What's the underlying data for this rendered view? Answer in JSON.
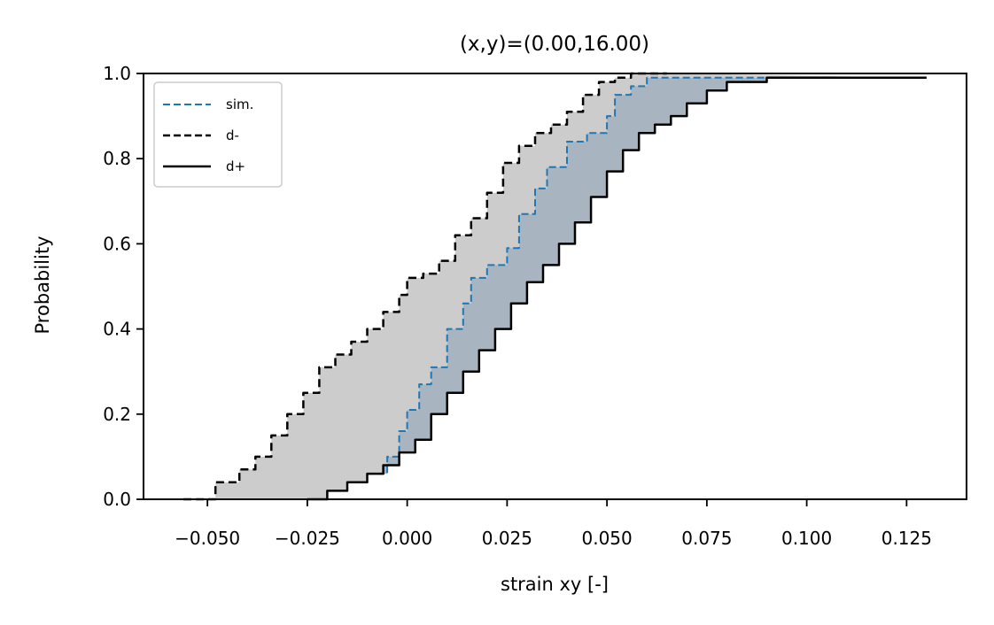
{
  "chart_data": {
    "type": "line",
    "title": "(x,y)=(0.00,16.00)",
    "xlabel": "strain xy [-]",
    "ylabel": "Probability",
    "xlim": [
      -0.066,
      0.14
    ],
    "ylim": [
      0.0,
      1.0
    ],
    "xticks": [
      -0.05,
      -0.025,
      0.0,
      0.025,
      0.05,
      0.075,
      0.1,
      0.125
    ],
    "xtick_labels": [
      "−0.050",
      "−0.025",
      "0.000",
      "0.025",
      "0.050",
      "0.075",
      "0.100",
      "0.125"
    ],
    "yticks": [
      0.0,
      0.2,
      0.4,
      0.6,
      0.8,
      1.0
    ],
    "ytick_labels": [
      "0.0",
      "0.2",
      "0.4",
      "0.6",
      "0.8",
      "1.0"
    ],
    "grid": false,
    "legend_position": "upper-left",
    "series": [
      {
        "name": "sim.",
        "color": "#1f77b4",
        "linestyle": "dashed",
        "x": [
          -0.025,
          -0.02,
          -0.015,
          -0.01,
          -0.005,
          -0.002,
          0.0,
          0.003,
          0.006,
          0.01,
          0.014,
          0.016,
          0.02,
          0.025,
          0.028,
          0.032,
          0.035,
          0.04,
          0.045,
          0.05,
          0.052,
          0.056,
          0.06,
          0.065,
          0.07,
          0.075,
          0.08,
          0.085,
          0.09,
          0.1,
          0.13
        ],
        "y": [
          0.0,
          0.02,
          0.04,
          0.06,
          0.1,
          0.16,
          0.21,
          0.27,
          0.31,
          0.4,
          0.46,
          0.52,
          0.55,
          0.59,
          0.67,
          0.73,
          0.78,
          0.84,
          0.86,
          0.9,
          0.95,
          0.97,
          0.99,
          0.99,
          0.99,
          0.99,
          0.99,
          0.99,
          0.99,
          0.99,
          0.99
        ]
      },
      {
        "name": "d-",
        "color": "#000000",
        "linestyle": "dashed",
        "x": [
          -0.056,
          -0.048,
          -0.042,
          -0.038,
          -0.034,
          -0.03,
          -0.026,
          -0.022,
          -0.018,
          -0.014,
          -0.01,
          -0.006,
          -0.002,
          0.0,
          0.004,
          0.008,
          0.012,
          0.016,
          0.02,
          0.024,
          0.028,
          0.032,
          0.036,
          0.04,
          0.044,
          0.048,
          0.052,
          0.056,
          0.06,
          0.065
        ],
        "y": [
          0.0,
          0.04,
          0.07,
          0.1,
          0.15,
          0.2,
          0.25,
          0.31,
          0.34,
          0.37,
          0.4,
          0.44,
          0.48,
          0.52,
          0.53,
          0.56,
          0.62,
          0.66,
          0.72,
          0.79,
          0.83,
          0.86,
          0.88,
          0.91,
          0.95,
          0.98,
          0.99,
          1.0,
          1.0,
          1.0
        ]
      },
      {
        "name": "d+",
        "color": "#000000",
        "linestyle": "solid",
        "x": [
          -0.025,
          -0.02,
          -0.015,
          -0.01,
          -0.006,
          -0.002,
          0.002,
          0.006,
          0.01,
          0.014,
          0.018,
          0.022,
          0.026,
          0.03,
          0.034,
          0.038,
          0.042,
          0.046,
          0.05,
          0.054,
          0.058,
          0.062,
          0.066,
          0.07,
          0.075,
          0.08,
          0.09,
          0.1,
          0.13
        ],
        "y": [
          0.0,
          0.02,
          0.04,
          0.06,
          0.08,
          0.11,
          0.14,
          0.2,
          0.25,
          0.3,
          0.35,
          0.4,
          0.46,
          0.51,
          0.55,
          0.6,
          0.65,
          0.71,
          0.77,
          0.82,
          0.86,
          0.88,
          0.9,
          0.93,
          0.96,
          0.98,
          0.99,
          0.99,
          0.99
        ]
      }
    ],
    "fills": [
      {
        "between": [
          "d-",
          "sim."
        ],
        "color": "#cccccc"
      },
      {
        "between": [
          "sim.",
          "d+"
        ],
        "color": "#a8b4c0"
      }
    ]
  }
}
